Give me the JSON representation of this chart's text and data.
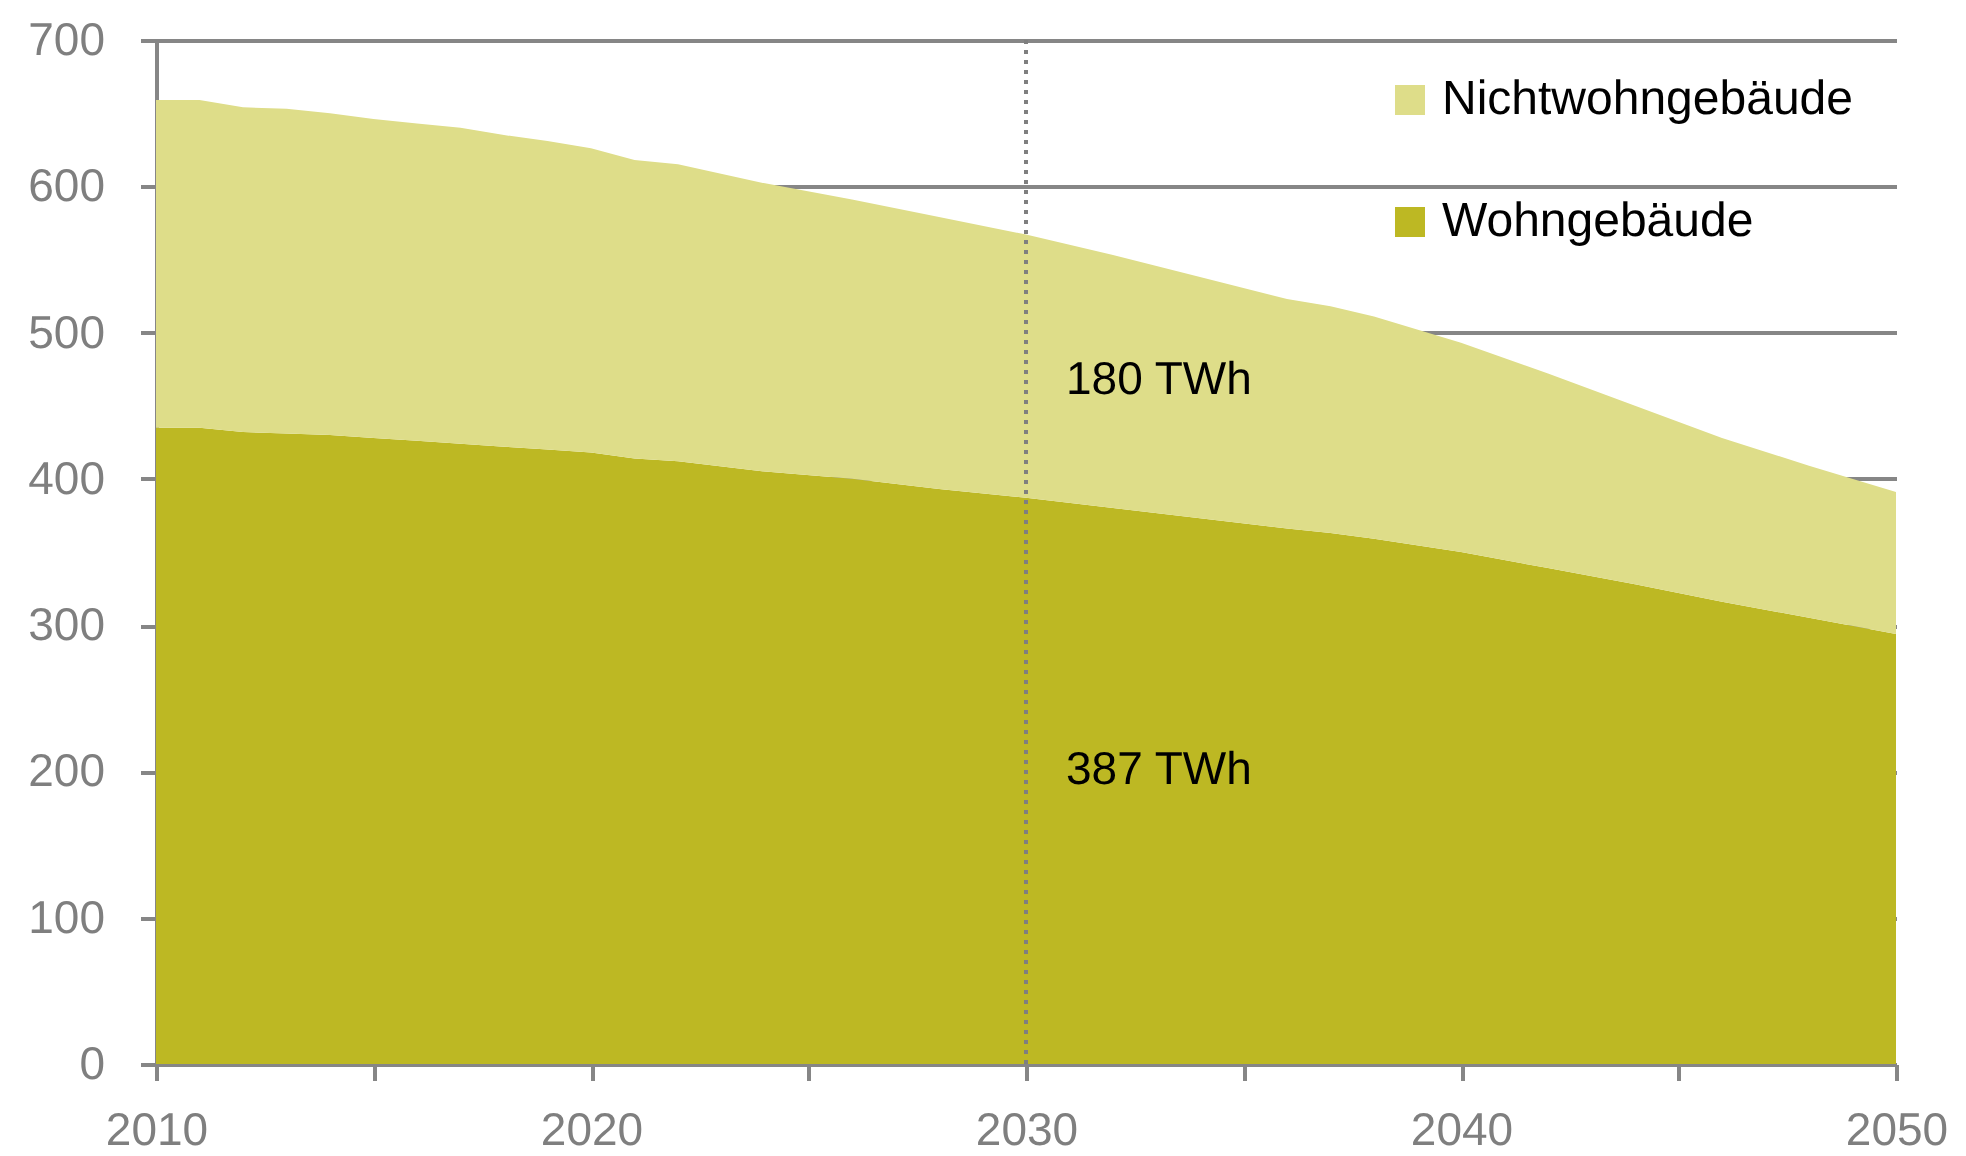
{
  "chart_data": {
    "type": "area",
    "stacked": true,
    "x": [
      2010,
      2011,
      2012,
      2013,
      2014,
      2015,
      2016,
      2017,
      2018,
      2019,
      2020,
      2021,
      2022,
      2024,
      2026,
      2028,
      2030,
      2032,
      2034,
      2036,
      2037,
      2038,
      2040,
      2042,
      2044,
      2046,
      2048,
      2050
    ],
    "series": [
      {
        "name": "Wohngebäude",
        "color": "#bdb823",
        "values": [
          435,
          435,
          432,
          431,
          430,
          428,
          426,
          424,
          422,
          420,
          418,
          414,
          412,
          405,
          400,
          393,
          387,
          380,
          373,
          366,
          363,
          359,
          350,
          339,
          328,
          316,
          305,
          294
        ]
      },
      {
        "name": "Nichtwohngebäude",
        "color": "#dedd89",
        "values": [
          224,
          224,
          222,
          222,
          220,
          218,
          217,
          216,
          213,
          211,
          208,
          204,
          203,
          197,
          191,
          186,
          180,
          173,
          165,
          157,
          155,
          152,
          143,
          133,
          122,
          112,
          104,
          97
        ]
      }
    ],
    "xlim": [
      2010,
      2050
    ],
    "xticks": [
      2010,
      {
        "value": 2015,
        "label": null
      },
      2020,
      {
        "value": 2025,
        "label": null
      },
      2030,
      {
        "value": 2035,
        "label": null
      },
      2040,
      {
        "value": 2045,
        "label": null
      },
      2050
    ],
    "ylim": [
      0,
      700
    ],
    "yticks": [
      0,
      100,
      200,
      300,
      400,
      500,
      600,
      700
    ],
    "grid": "y",
    "legend": "top right",
    "ref_lines": [
      {
        "axis": "x",
        "value": 2030,
        "color": "#7f7f7f",
        "line_style": "dotted"
      }
    ],
    "annotations": [
      "180 TWh",
      "387 TWh"
    ]
  }
}
